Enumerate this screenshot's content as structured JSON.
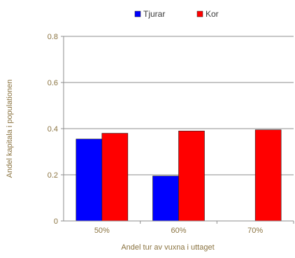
{
  "chart_data": {
    "type": "bar",
    "categories": [
      "50%",
      "60%",
      "70%"
    ],
    "series": [
      {
        "name": "Tjurar",
        "values": [
          0.355,
          0.195,
          0
        ],
        "color": "#0000ff"
      },
      {
        "name": "Kor",
        "values": [
          0.38,
          0.39,
          0.395
        ],
        "color": "#ff0000"
      }
    ],
    "yticks": [
      "0",
      "0.2",
      "0.4",
      "0.6",
      "0.8"
    ],
    "ylim": [
      0,
      0.8
    ],
    "xlabel": "Andel tur av vuxna i uttaget",
    "ylabel": "Andel kapitala i populationen",
    "grid": true,
    "legend_position": "top-center"
  }
}
